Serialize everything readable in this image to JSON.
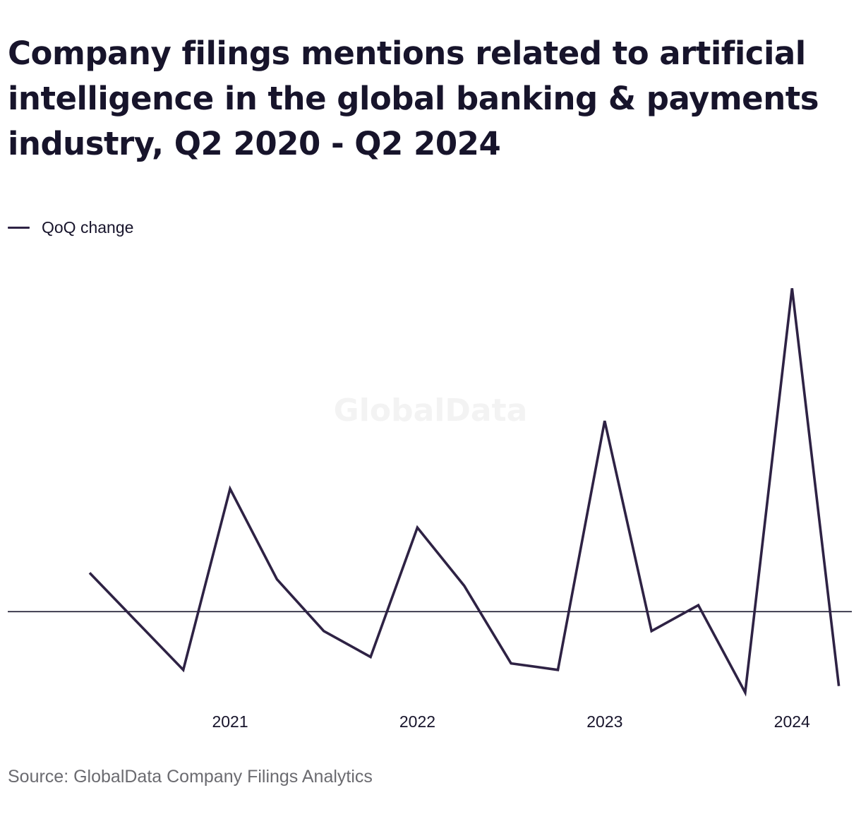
{
  "title": "Company filings mentions related to artificial intelligence in the global banking & payments industry, Q2 2020 - Q2 2024",
  "legend": {
    "label": "QoQ change"
  },
  "watermark": "GlobalData",
  "source": "Source: GlobalData Company Filings Analytics",
  "colors": {
    "series": "#2e2244",
    "baseline": "#17142b",
    "text": "#17142b",
    "source_text": "#6b6b70",
    "watermark": "#f3f3f3"
  },
  "chart_data": {
    "type": "line",
    "title": "Company filings mentions related to artificial intelligence in the global banking & payments industry, Q2 2020 - Q2 2024",
    "xlabel": "",
    "ylabel": "",
    "x": [
      "Q2 2020",
      "Q3 2020",
      "Q4 2020",
      "Q1 2021",
      "Q2 2021",
      "Q3 2021",
      "Q4 2021",
      "Q1 2022",
      "Q2 2022",
      "Q3 2022",
      "Q4 2022",
      "Q1 2023",
      "Q2 2023",
      "Q3 2023",
      "Q4 2023",
      "Q1 2024",
      "Q2 2024"
    ],
    "x_tick_labels": [
      {
        "label": "2021",
        "at": "Q1 2021"
      },
      {
        "label": "2022",
        "at": "Q1 2022"
      },
      {
        "label": "2023",
        "at": "Q1 2023"
      },
      {
        "label": "2024",
        "at": "Q1 2024"
      }
    ],
    "series": [
      {
        "name": "QoQ change",
        "values": [
          0.12,
          -0.03,
          -0.18,
          0.38,
          0.1,
          -0.06,
          -0.14,
          0.26,
          0.08,
          -0.16,
          -0.18,
          0.59,
          -0.06,
          0.02,
          -0.25,
          1.0,
          -0.23
        ]
      }
    ],
    "ylim": [
      -0.27,
      1.04
    ],
    "zero_line": true,
    "y_tick_labels": false,
    "grid": false,
    "legend_position": "top-left"
  }
}
